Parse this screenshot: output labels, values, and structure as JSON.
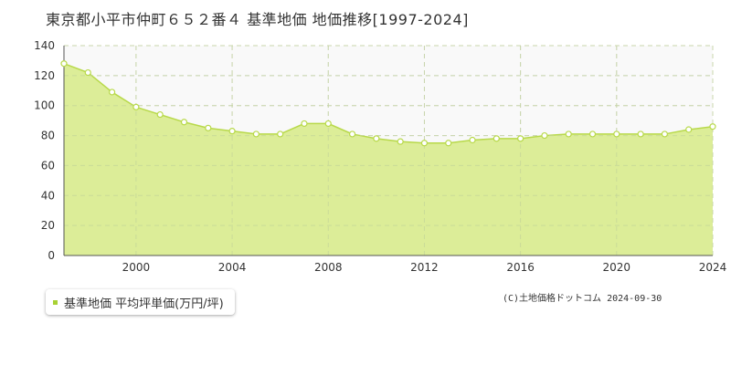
{
  "chart_data": {
    "type": "area",
    "title": "東京都小平市仲町６５２番４ 基準地価 地価推移[1997-2024]",
    "xlabel": "",
    "ylabel": "",
    "x": [
      1997,
      1998,
      1999,
      2000,
      2001,
      2002,
      2003,
      2004,
      2005,
      2006,
      2007,
      2008,
      2009,
      2010,
      2011,
      2012,
      2013,
      2014,
      2015,
      2016,
      2017,
      2018,
      2019,
      2020,
      2021,
      2022,
      2023,
      2024
    ],
    "x_ticks": [
      2000,
      2004,
      2008,
      2012,
      2016,
      2020,
      2024
    ],
    "ylim": [
      0,
      140
    ],
    "y_ticks": [
      0,
      20,
      40,
      60,
      80,
      100,
      120,
      140
    ],
    "grid": true,
    "legend_position": "bottom-left",
    "series": [
      {
        "name": "基準地価 平均坪単価(万円/坪)",
        "values": [
          128,
          122,
          109,
          99,
          94,
          89,
          85,
          83,
          81,
          81,
          88,
          88,
          81,
          78,
          76,
          75,
          75,
          77,
          78,
          78,
          80,
          81,
          81,
          81,
          81,
          81,
          84,
          86
        ]
      }
    ]
  },
  "colors": {
    "area_fill": "#d9ec8f",
    "line": "#b8d94a",
    "marker_fill": "#ffffff",
    "plot_background_upper": "#f9f9f9",
    "grid": "#d6d6d6",
    "axis": "#555555",
    "legend_marker": "#a8d134"
  },
  "credit": "(C)土地価格ドットコム 2024-09-30"
}
